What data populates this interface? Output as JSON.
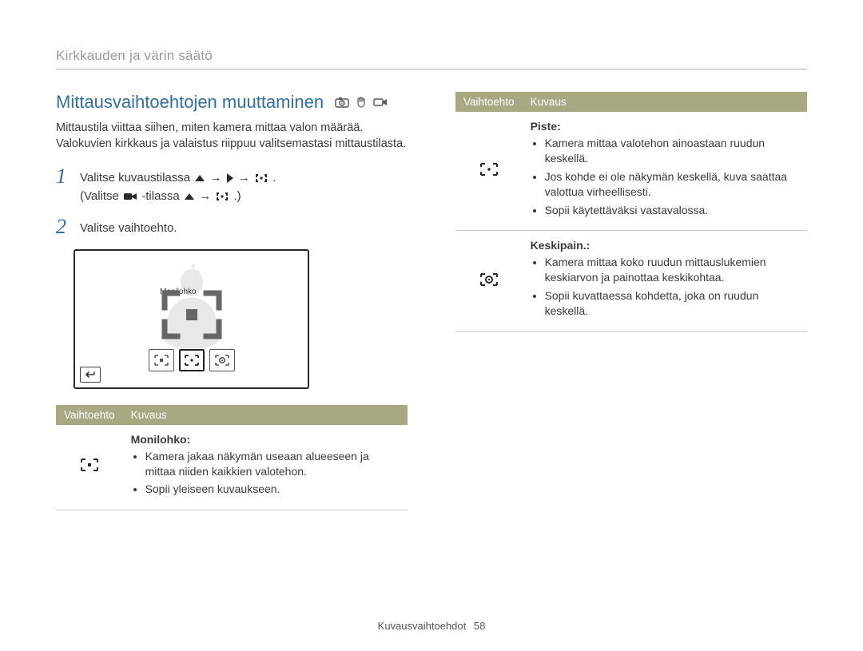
{
  "breadcrumb": "Kirkkauden ja värin säätö",
  "heading": "Mittausvaihtoehtojen muuttaminen",
  "intro": "Mittaustila viittaa siihen, miten kamera mittaa valon määrää. Valokuvien kirkkaus ja valaistus riippuu valitsemastasi mittaustilasta.",
  "step1_a": "Valitse kuvaustilassa ",
  "step1_b": " → ",
  "step1_c": " → ",
  "step1_d": ".",
  "step1_e": "(Valitse ",
  "step1_f": " -tilassa ",
  "step1_g": " → ",
  "step1_h": ".)",
  "step2": "Valitse vaihtoehto.",
  "lcd_label": "Monilohko",
  "table_headers": {
    "opt": "Vaihtoehto",
    "desc": "Kuvaus"
  },
  "opts_left": [
    {
      "icon": "multi",
      "title": "Monilohko:",
      "bullets": [
        "Kamera jakaa näkymän useaan alueeseen ja mittaa niiden kaikkien valotehon.",
        "Sopii yleiseen kuvaukseen."
      ]
    }
  ],
  "opts_right": [
    {
      "icon": "spot",
      "title": "Piste:",
      "bullets": [
        "Kamera mittaa valotehon ainoastaan ruudun keskellä.",
        "Jos kohde ei ole näkymän keskellä, kuva saattaa valottua virheellisesti.",
        "Sopii käytettäväksi vastavalossa."
      ]
    },
    {
      "icon": "center",
      "title": "Keskipain.:",
      "bullets": [
        "Kamera mittaa koko ruudun mittauslukemien keskiarvon ja painottaa keskikohtaa.",
        "Sopii kuvattaessa kohdetta, joka on ruudun keskellä."
      ]
    }
  ],
  "footer_label": "Kuvausvaihtoehdot",
  "footer_page": "58"
}
